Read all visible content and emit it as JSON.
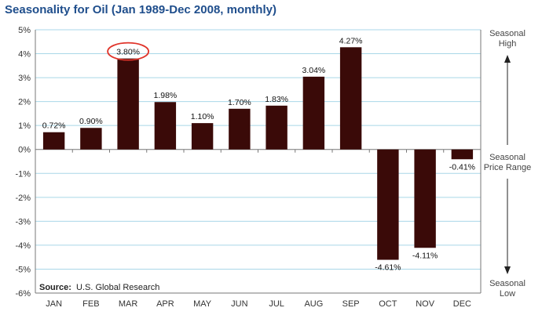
{
  "title": "Seasonality for Oil (Jan 1989-Dec 2008, monthly)",
  "source": {
    "label": "Source:",
    "text": "U.S. Global Research"
  },
  "side_labels": {
    "high_line1": "Seasonal",
    "high_line2": "High",
    "mid_line1": "Seasonal",
    "mid_line2": "Price Range",
    "low_line1": "Seasonal",
    "low_line2": "Low"
  },
  "colors": {
    "bar": "#3a0a08",
    "grid": "#a9d7e8",
    "highlight_circle": "#e0342a",
    "title": "#1f4e8c"
  },
  "chart_data": {
    "type": "bar",
    "categories": [
      "JAN",
      "FEB",
      "MAR",
      "APR",
      "MAY",
      "JUN",
      "JUL",
      "AUG",
      "SEP",
      "OCT",
      "NOV",
      "DEC"
    ],
    "values": [
      0.72,
      0.9,
      3.8,
      1.98,
      1.1,
      1.7,
      1.83,
      3.04,
      4.27,
      -4.61,
      -4.11,
      -0.41
    ],
    "data_labels": [
      "0.72%",
      "0.90%",
      "3.80%",
      "1.98%",
      "1.10%",
      "1.70%",
      "1.83%",
      "3.04%",
      "4.27%",
      "-4.61%",
      "-4.11%",
      "-0.41%"
    ],
    "highlighted_category": "MAR",
    "yticks": [
      5,
      4,
      3,
      2,
      1,
      0,
      -1,
      -2,
      -3,
      -4,
      -5,
      -6
    ],
    "ytick_labels": [
      "5%",
      "4%",
      "3%",
      "2%",
      "1%",
      "0%",
      "-1%",
      "-2%",
      "-3%",
      "-4%",
      "-5%",
      "-6%"
    ],
    "ylim": [
      -6,
      5
    ],
    "grid": true
  }
}
